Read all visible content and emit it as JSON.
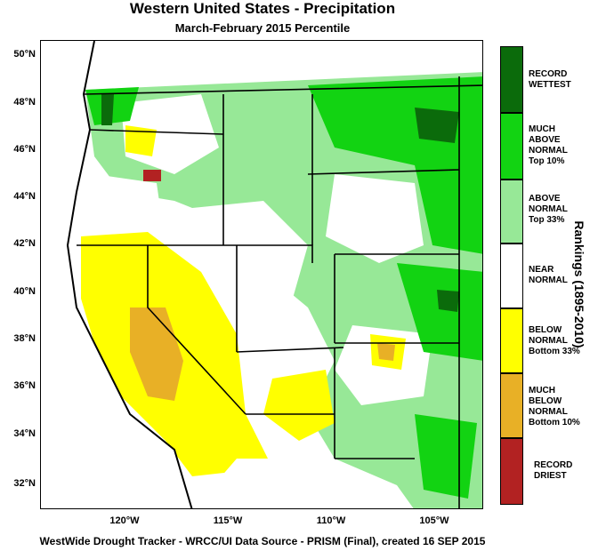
{
  "header": {
    "title": "Western United States - Precipitation",
    "subtitle": "March-February 2015 Percentile"
  },
  "footer": "WestWide Drought Tracker - WRCC/UI  Data Source - PRISM (Final), created 16 SEP 2015",
  "axes": {
    "lat_labels": [
      "50°N",
      "48°N",
      "46°N",
      "44°N",
      "42°N",
      "40°N",
      "38°N",
      "36°N",
      "34°N",
      "32°N"
    ],
    "lon_labels": [
      "120°W",
      "115°W",
      "110°W",
      "105°W"
    ]
  },
  "legend": {
    "title": "Rankings (1895-2010)",
    "items": [
      {
        "lines": [
          "RECORD",
          "WETTEST"
        ],
        "color": "#0b6b0b"
      },
      {
        "lines": [
          "MUCH",
          "ABOVE",
          "NORMAL",
          "Top 10%"
        ],
        "color": "#12d312"
      },
      {
        "lines": [
          "ABOVE",
          "NORMAL",
          "Top 33%"
        ],
        "color": "#97e897"
      },
      {
        "lines": [
          "NEAR",
          "NORMAL"
        ],
        "color": "#ffffff"
      },
      {
        "lines": [
          "BELOW",
          "NORMAL",
          "Bottom 33%"
        ],
        "color": "#ffff00"
      },
      {
        "lines": [
          "MUCH",
          "BELOW",
          "NORMAL",
          "Bottom 10%"
        ],
        "color": "#e8b026"
      },
      {
        "lines": [
          "RECORD",
          "DRIEST"
        ],
        "color": "#b22222"
      }
    ]
  },
  "colors": {
    "record_wettest": "#0b6b0b",
    "much_above": "#12d312",
    "above": "#97e897",
    "near": "#ffffff",
    "below": "#ffff00",
    "much_below": "#e8b026",
    "record_driest": "#b22222"
  }
}
